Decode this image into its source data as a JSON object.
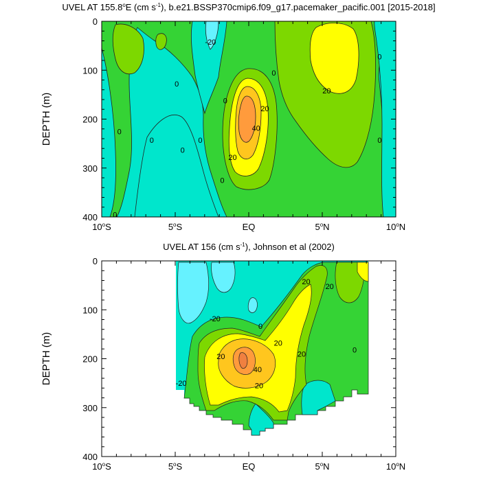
{
  "chart_data": [
    {
      "type": "heatmap",
      "title_main": "UVEL AT 155.8",
      "title_deg": "o",
      "title_unit": "E (cm s",
      "title_exp": "-1",
      "title_rest": "), b.e21.BSSP370cmip6.f09_g17.pacemaker_pacific.001 [2015-2018]",
      "ylabel": "DEPTH (m)",
      "xlim_deg": [
        -10,
        10
      ],
      "ylim_m": [
        0,
        400
      ],
      "y_reversed": true,
      "x_ticks": [
        {
          "value": -10,
          "label": "10",
          "deg": "o",
          "suffix": "S"
        },
        {
          "value": -5,
          "label": "5",
          "deg": "o",
          "suffix": "S"
        },
        {
          "value": 0,
          "label": "EQ",
          "deg": "",
          "suffix": ""
        },
        {
          "value": 5,
          "label": "5",
          "deg": "o",
          "suffix": "N"
        },
        {
          "value": 10,
          "label": "10",
          "deg": "o",
          "suffix": "N"
        }
      ],
      "y_ticks": [
        {
          "value": 0,
          "label": "0"
        },
        {
          "value": 100,
          "label": "100"
        },
        {
          "value": 200,
          "label": "200"
        },
        {
          "value": 300,
          "label": "300"
        },
        {
          "value": 400,
          "label": "400"
        }
      ],
      "contour_labels": [
        {
          "lat": -9.1,
          "depth": 395,
          "text": "0"
        },
        {
          "lat": -8.8,
          "depth": 225,
          "text": "0"
        },
        {
          "lat": -6.6,
          "depth": 243,
          "text": "0"
        },
        {
          "lat": -4.5,
          "depth": 263,
          "text": "0"
        },
        {
          "lat": -3.3,
          "depth": 243,
          "text": "0"
        },
        {
          "lat": -4.9,
          "depth": 128,
          "text": "0"
        },
        {
          "lat": -2.6,
          "depth": 42,
          "text": "-20"
        },
        {
          "lat": -1.8,
          "depth": 325,
          "text": "0"
        },
        {
          "lat": -1.6,
          "depth": 162,
          "text": "0"
        },
        {
          "lat": -1.1,
          "depth": 278,
          "text": "20"
        },
        {
          "lat": 1.1,
          "depth": 178,
          "text": "20"
        },
        {
          "lat": 0.5,
          "depth": 218,
          "text": "40"
        },
        {
          "lat": 1.7,
          "depth": 105,
          "text": "0"
        },
        {
          "lat": 5.3,
          "depth": 142,
          "text": "20"
        },
        {
          "lat": 8.9,
          "depth": 72,
          "text": "0"
        },
        {
          "lat": 8.9,
          "depth": 243,
          "text": "0"
        }
      ]
    },
    {
      "type": "heatmap",
      "title_main": "UVEL AT 156 (cm s",
      "title_exp": "-1",
      "title_rest": "), Johnson et al (2002)",
      "ylabel": "DEPTH (m)",
      "xlim_deg": [
        -10,
        10
      ],
      "ylim_m": [
        0,
        400
      ],
      "y_reversed": true,
      "x_ticks": [
        {
          "value": -10,
          "label": "10",
          "deg": "o",
          "suffix": "S"
        },
        {
          "value": -5,
          "label": "5",
          "deg": "o",
          "suffix": "S"
        },
        {
          "value": 0,
          "label": "EQ",
          "deg": "",
          "suffix": ""
        },
        {
          "value": 5,
          "label": "5",
          "deg": "o",
          "suffix": "N"
        },
        {
          "value": 10,
          "label": "10",
          "deg": "o",
          "suffix": "N"
        }
      ],
      "y_ticks": [
        {
          "value": 0,
          "label": "0"
        },
        {
          "value": 100,
          "label": "100"
        },
        {
          "value": 200,
          "label": "200"
        },
        {
          "value": 300,
          "label": "300"
        },
        {
          "value": 400,
          "label": "400"
        }
      ],
      "contour_labels": [
        {
          "lat": -2.3,
          "depth": 118,
          "text": "-20"
        },
        {
          "lat": -4.6,
          "depth": 250,
          "text": "-20"
        },
        {
          "lat": 0.8,
          "depth": 133,
          "text": "0"
        },
        {
          "lat": -1.9,
          "depth": 195,
          "text": "20"
        },
        {
          "lat": 2.0,
          "depth": 168,
          "text": "20"
        },
        {
          "lat": 0.6,
          "depth": 222,
          "text": "40"
        },
        {
          "lat": 0.7,
          "depth": 255,
          "text": "20"
        },
        {
          "lat": 3.6,
          "depth": 190,
          "text": "20"
        },
        {
          "lat": 3.9,
          "depth": 42,
          "text": "20"
        },
        {
          "lat": 5.5,
          "depth": 52,
          "text": "20"
        },
        {
          "lat": 7.2,
          "depth": 182,
          "text": "0"
        }
      ]
    }
  ],
  "colors": {
    "cyan": "#00e6cc",
    "cyan_light": "#33e6e0",
    "aqua": "#66f2ff",
    "green_light": "#00e05a",
    "green_mid": "#35d335",
    "green_bright": "#7dd800",
    "yellow": "#ffff00",
    "yellow_orange": "#ffc61e",
    "orange": "#ff9b3c",
    "orange_dark": "#f08040",
    "line": "#000000",
    "contour": "#222222"
  }
}
